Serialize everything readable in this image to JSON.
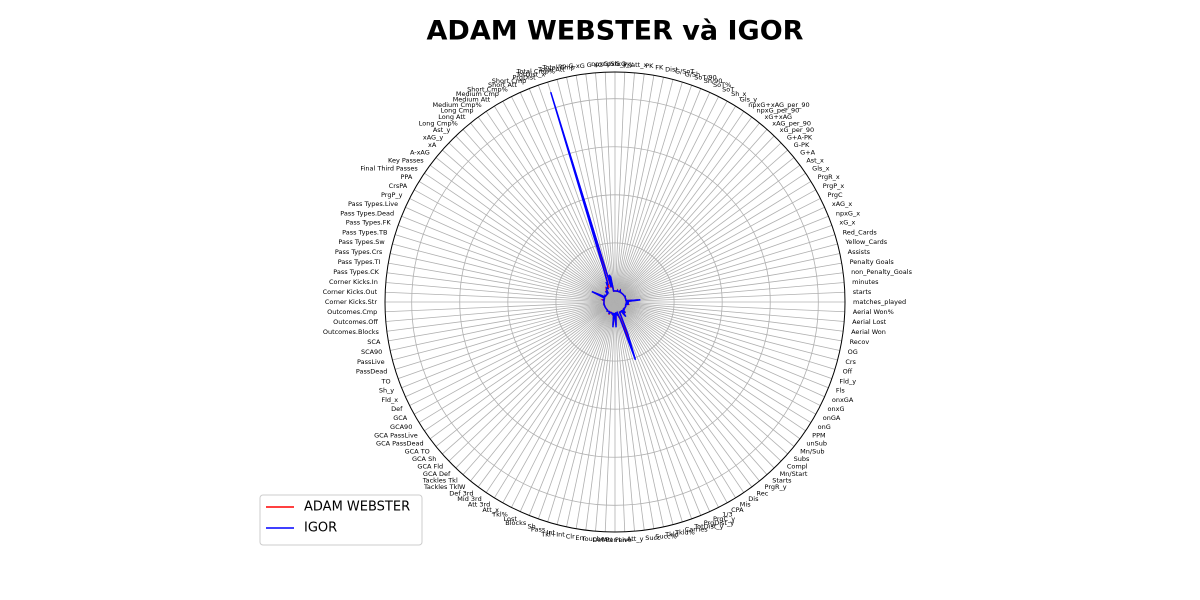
{
  "chart_data": {
    "type": "radar",
    "title": "ADAM WEBSTER và IGOR",
    "categories": [
      "matches_played",
      "starts",
      "minutes",
      "non_Penalty_Goals",
      "Penalty Goals",
      "Assists",
      "Yellow_Cards",
      "Red_Cards",
      "xG_x",
      "npxG_x",
      "xAG_x",
      "PrgC",
      "PrgP_x",
      "PrgR_x",
      "Gls_x",
      "Ast_x",
      "G+A",
      "G-PK",
      "G+A-PK",
      "xG_per_90",
      "xAG_per_90",
      "xG+xAG",
      "npxG_per_90",
      "npxG+xAG_per_90",
      "Gls_y",
      "Sh_x",
      "SoT",
      "SoT%",
      "Sh/90",
      "SoT/90",
      "G/Sh",
      "G/SoT",
      "Dist",
      "FK",
      "PK",
      "PKatt_x",
      "xG_y",
      "npxG_y",
      "npxG/Sh",
      "G-xG",
      "np:G-xG",
      "Total Cmp",
      "Total Att",
      "Total Cmp%",
      "TotDist_x",
      "PrgDist",
      "Short Cmp",
      "Short Att",
      "Short Cmp%",
      "Medium Cmp",
      "Medium Att",
      "Medium Cmp%",
      "Long Cmp",
      "Long Att",
      "Long Cmp%",
      "Ast_y",
      "xAG_y",
      "xA",
      "A-xAG",
      "Key Passes",
      "Final Third Passes",
      "PPA",
      "CrsPA",
      "PrgP_y",
      "Pass Types.Live",
      "Pass Types.Dead",
      "Pass Types.FK",
      "Pass Types.TB",
      "Pass Types.Sw",
      "Pass Types.Crs",
      "Pass Types.TI",
      "Pass Types.CK",
      "Corner Kicks.In",
      "Corner Kicks.Out",
      "Corner Kicks.Str",
      "Outcomes.Cmp",
      "Outcomes.Off",
      "Outcomes.Blocks",
      "SCA",
      "SCA90",
      "PassLive",
      "PassDead",
      "TO",
      "Sh_y",
      "Fld_x",
      "Def",
      "GCA",
      "GCA90",
      "GCA PassLive",
      "GCA PassDead",
      "GCA TO",
      "GCA Sh",
      "GCA Fld",
      "GCA Def",
      "Tackles Tkl",
      "Tackles TklW",
      "Def 3rd",
      "Mid 3rd",
      "Att 3rd",
      "Att_x",
      "Tkl%",
      "Lost",
      "Blocks",
      "Sh",
      "Pass",
      "Int",
      "Tkl+Int",
      "Clr",
      "Err",
      "Touches",
      "Def Pen",
      "Att Pen",
      "Live",
      "Att_y",
      "Succ",
      "Succ%",
      "Tkld",
      "Tkld%",
      "Carries",
      "TotDist_y",
      "PrgDist_y",
      "PrgC_y",
      "1/3",
      "CPA",
      "Mis",
      "Dis",
      "Rec",
      "PrgR_y",
      "Starts",
      "Mn/Start",
      "Compl",
      "Subs",
      "Mn/Sub",
      "unSub",
      "PPM",
      "onG",
      "onGA",
      "onxG",
      "onxGA",
      "Fls",
      "Fld_y",
      "Off",
      "Crs",
      "OG",
      "Recov",
      "Aerial Won",
      "Aerial Lost",
      "Aerial Won%"
    ],
    "series": [
      {
        "name": "ADAM WEBSTER",
        "color": "#ff0000",
        "values": [
          10,
          9,
          250,
          0,
          0,
          0,
          2,
          0,
          0,
          0,
          0,
          8,
          12,
          3,
          0,
          0,
          0,
          0,
          0,
          0,
          0,
          0,
          0,
          0,
          0,
          3,
          1,
          30,
          0,
          0,
          0,
          0,
          20,
          0,
          0,
          0,
          0,
          0,
          0,
          0,
          0,
          250,
          300,
          80,
          3000,
          350,
          120,
          140,
          85,
          100,
          120,
          85,
          30,
          60,
          50,
          0,
          0,
          0,
          0,
          1,
          10,
          0,
          0,
          10,
          250,
          50,
          8,
          0,
          2,
          0,
          30,
          0,
          0,
          0,
          0,
          0,
          1,
          1,
          3,
          0,
          3,
          0,
          0,
          0,
          0,
          0,
          0,
          0,
          0,
          0,
          0,
          0,
          0,
          0,
          15,
          10,
          8,
          6,
          1,
          5,
          60,
          5,
          8,
          3,
          4,
          20,
          35,
          45,
          0,
          250,
          30,
          5,
          250,
          1,
          0,
          0,
          1,
          100,
          120,
          700,
          300,
          3,
          5,
          0,
          2,
          1,
          120,
          3,
          9,
          85,
          7,
          1,
          10,
          2,
          1,
          8,
          10,
          7,
          11,
          10,
          5,
          0,
          1,
          0,
          50,
          30,
          20,
          60
        ]
      },
      {
        "name": "IGOR",
        "color": "#0000ff",
        "values": [
          12,
          10,
          300,
          1,
          0,
          1,
          3,
          0,
          1,
          1,
          1,
          10,
          15,
          5,
          1,
          1,
          2,
          1,
          2,
          0,
          0,
          0,
          0,
          0,
          1,
          8,
          3,
          30,
          1,
          0,
          0,
          0,
          15,
          0,
          0,
          0,
          1,
          1,
          0,
          0,
          0,
          300,
          350,
          85,
          4350,
          400,
          180,
          200,
          90,
          100,
          110,
          90,
          20,
          40,
          50,
          0,
          0,
          0,
          0,
          3,
          20,
          2,
          1,
          15,
          300,
          40,
          5,
          0,
          3,
          2,
          20,
          1,
          0,
          0,
          0,
          2,
          1,
          1,
          8,
          1,
          7,
          1,
          0,
          0,
          1,
          0,
          0,
          0,
          0,
          0,
          0,
          0,
          0,
          0,
          20,
          12,
          10,
          8,
          2,
          10,
          50,
          10,
          5,
          2,
          3,
          15,
          35,
          40,
          0,
          300,
          20,
          10,
          300,
          3,
          1,
          30,
          1,
          50,
          150,
          1050,
          500,
          5,
          10,
          1,
          4,
          3,
          150,
          5,
          10,
          80,
          8,
          2,
          15,
          1,
          1,
          10,
          8,
          9,
          10,
          12,
          10,
          1,
          5,
          0,
          60,
          20,
          10,
          60
        ]
      }
    ],
    "ylim": [
      -230,
      4570
    ],
    "grid": true,
    "legend": "lower left"
  }
}
